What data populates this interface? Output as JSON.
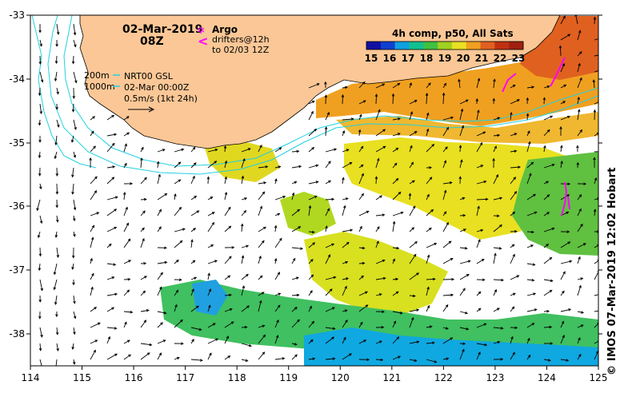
{
  "map": {
    "title_date": "02-Mar-2019",
    "title_time": "08Z",
    "colorbar": {
      "title": "4h comp, p50, All Sats",
      "ticks": [
        "15",
        "16",
        "17",
        "18",
        "19",
        "20",
        "21",
        "22",
        "23"
      ],
      "colors": [
        "#1010a0",
        "#1040d0",
        "#10a0e0",
        "#10c090",
        "#40c040",
        "#a0d020",
        "#e8e020",
        "#f0a020",
        "#e06020",
        "#c03010",
        "#a02010"
      ]
    },
    "legend": {
      "argo_label": "Argo",
      "drifters_label": "drifters@12h",
      "drifters_to": "to 02/03 12Z",
      "argo_symbol": "✲",
      "drifter_symbol": "<"
    },
    "depth_labels": [
      "200m",
      "1000m"
    ],
    "current_info": [
      "NRT00 GSL",
      "02-Mar 00:00Z",
      "0.5m/s (1kt 24h)"
    ],
    "x_ticks": [
      "114",
      "115",
      "116",
      "117",
      "118",
      "119",
      "120",
      "121",
      "122",
      "123",
      "124",
      "125"
    ],
    "y_ticks": [
      "-33",
      "-34",
      "-35",
      "-36",
      "-37",
      "-38"
    ],
    "credit": "© IMOS 07-Mar-2019 12:02 Hobart",
    "colors": {
      "land": "#fbc796",
      "isobath": "#22d0e0",
      "drifter": "#ff00ff",
      "arrow": "#000000"
    }
  }
}
